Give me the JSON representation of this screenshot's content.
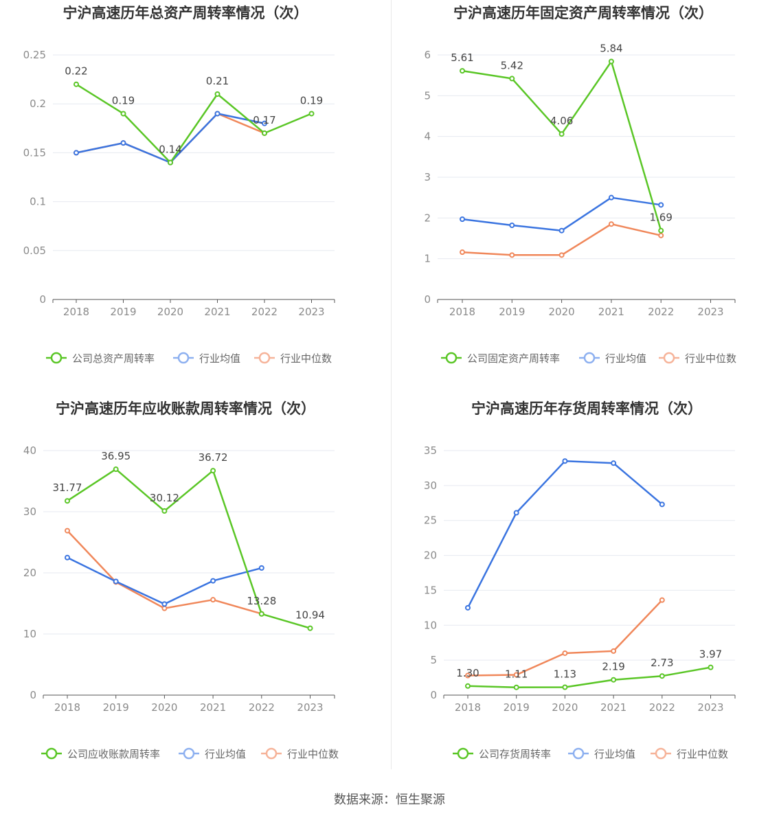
{
  "footer": "数据来源：恒生聚源",
  "legend": {
    "avg_label": "行业均值",
    "median_label": "行业中位数"
  },
  "colors": {
    "company": "#5ac626",
    "avg": "#3a74e0",
    "median": "#f0875a",
    "legend_avg_faded": "#8db0f0",
    "legend_median_faded": "#f6b399",
    "grid": "#e6e9f0",
    "axis": "#555555"
  },
  "chart_data": [
    {
      "type": "line",
      "title": "宁沪高速历年总资产周转率情况（次）",
      "categories": [
        "2018",
        "2019",
        "2020",
        "2021",
        "2022",
        "2023"
      ],
      "ylim": [
        0,
        0.25
      ],
      "yticks": [
        "0",
        "0.05",
        "0.1",
        "0.15",
        "0.2",
        "0.25"
      ],
      "series": [
        {
          "name": "公司总资产周转率",
          "values": [
            0.22,
            0.19,
            0.14,
            0.21,
            0.17,
            0.19
          ],
          "labels": [
            "0.22",
            "0.19",
            "0.14",
            "0.21",
            "0.17",
            "0.19"
          ]
        },
        {
          "name": "行业均值",
          "values": [
            0.15,
            0.16,
            0.14,
            0.19,
            0.18,
            null
          ]
        },
        {
          "name": "行业中位数",
          "values": [
            0.15,
            0.16,
            0.14,
            0.19,
            0.17,
            null
          ]
        }
      ]
    },
    {
      "type": "line",
      "title": "宁沪高速历年固定资产周转率情况（次）",
      "categories": [
        "2018",
        "2019",
        "2020",
        "2021",
        "2022",
        "2023"
      ],
      "ylim": [
        0,
        6
      ],
      "yticks": [
        "0",
        "1",
        "2",
        "3",
        "4",
        "5",
        "6"
      ],
      "series": [
        {
          "name": "公司固定资产周转率",
          "values": [
            5.61,
            5.42,
            4.06,
            5.84,
            1.69,
            null
          ],
          "labels": [
            "5.61",
            "5.42",
            "4.06",
            "5.84",
            "1.69",
            null
          ]
        },
        {
          "name": "行业均值",
          "values": [
            1.97,
            1.82,
            1.69,
            2.5,
            2.32,
            null
          ]
        },
        {
          "name": "行业中位数",
          "values": [
            1.16,
            1.09,
            1.09,
            1.85,
            1.57,
            null
          ]
        }
      ]
    },
    {
      "type": "line",
      "title": "宁沪高速历年应收账款周转率情况（次）",
      "categories": [
        "2018",
        "2019",
        "2020",
        "2021",
        "2022",
        "2023"
      ],
      "ylim": [
        0,
        40
      ],
      "yticks": [
        "0",
        "10",
        "20",
        "30",
        "40"
      ],
      "series": [
        {
          "name": "公司应收账款周转率",
          "values": [
            31.77,
            36.95,
            30.12,
            36.72,
            13.28,
            10.94
          ],
          "labels": [
            "31.77",
            "36.95",
            "30.12",
            "36.72",
            "13.28",
            "10.94"
          ]
        },
        {
          "name": "行业均值",
          "values": [
            22.5,
            18.6,
            14.9,
            18.7,
            20.8,
            null
          ]
        },
        {
          "name": "行业中位数",
          "values": [
            26.9,
            18.5,
            14.2,
            15.6,
            13.3,
            null
          ]
        }
      ]
    },
    {
      "type": "line",
      "title": "宁沪高速历年存货周转率情况（次）",
      "categories": [
        "2018",
        "2019",
        "2020",
        "2021",
        "2022",
        "2023"
      ],
      "ylim": [
        0,
        35
      ],
      "yticks": [
        "0",
        "5",
        "10",
        "15",
        "20",
        "25",
        "30",
        "35"
      ],
      "series": [
        {
          "name": "公司存货周转率",
          "values": [
            1.3,
            1.11,
            1.13,
            2.19,
            2.73,
            3.97
          ],
          "labels": [
            "1.30",
            "1.11",
            "1.13",
            "2.19",
            "2.73",
            "3.97"
          ]
        },
        {
          "name": "行业均值",
          "values": [
            12.5,
            26.1,
            33.5,
            33.2,
            27.3,
            null
          ]
        },
        {
          "name": "行业中位数",
          "values": [
            2.8,
            2.9,
            6.0,
            6.3,
            13.6,
            null
          ]
        }
      ]
    }
  ]
}
